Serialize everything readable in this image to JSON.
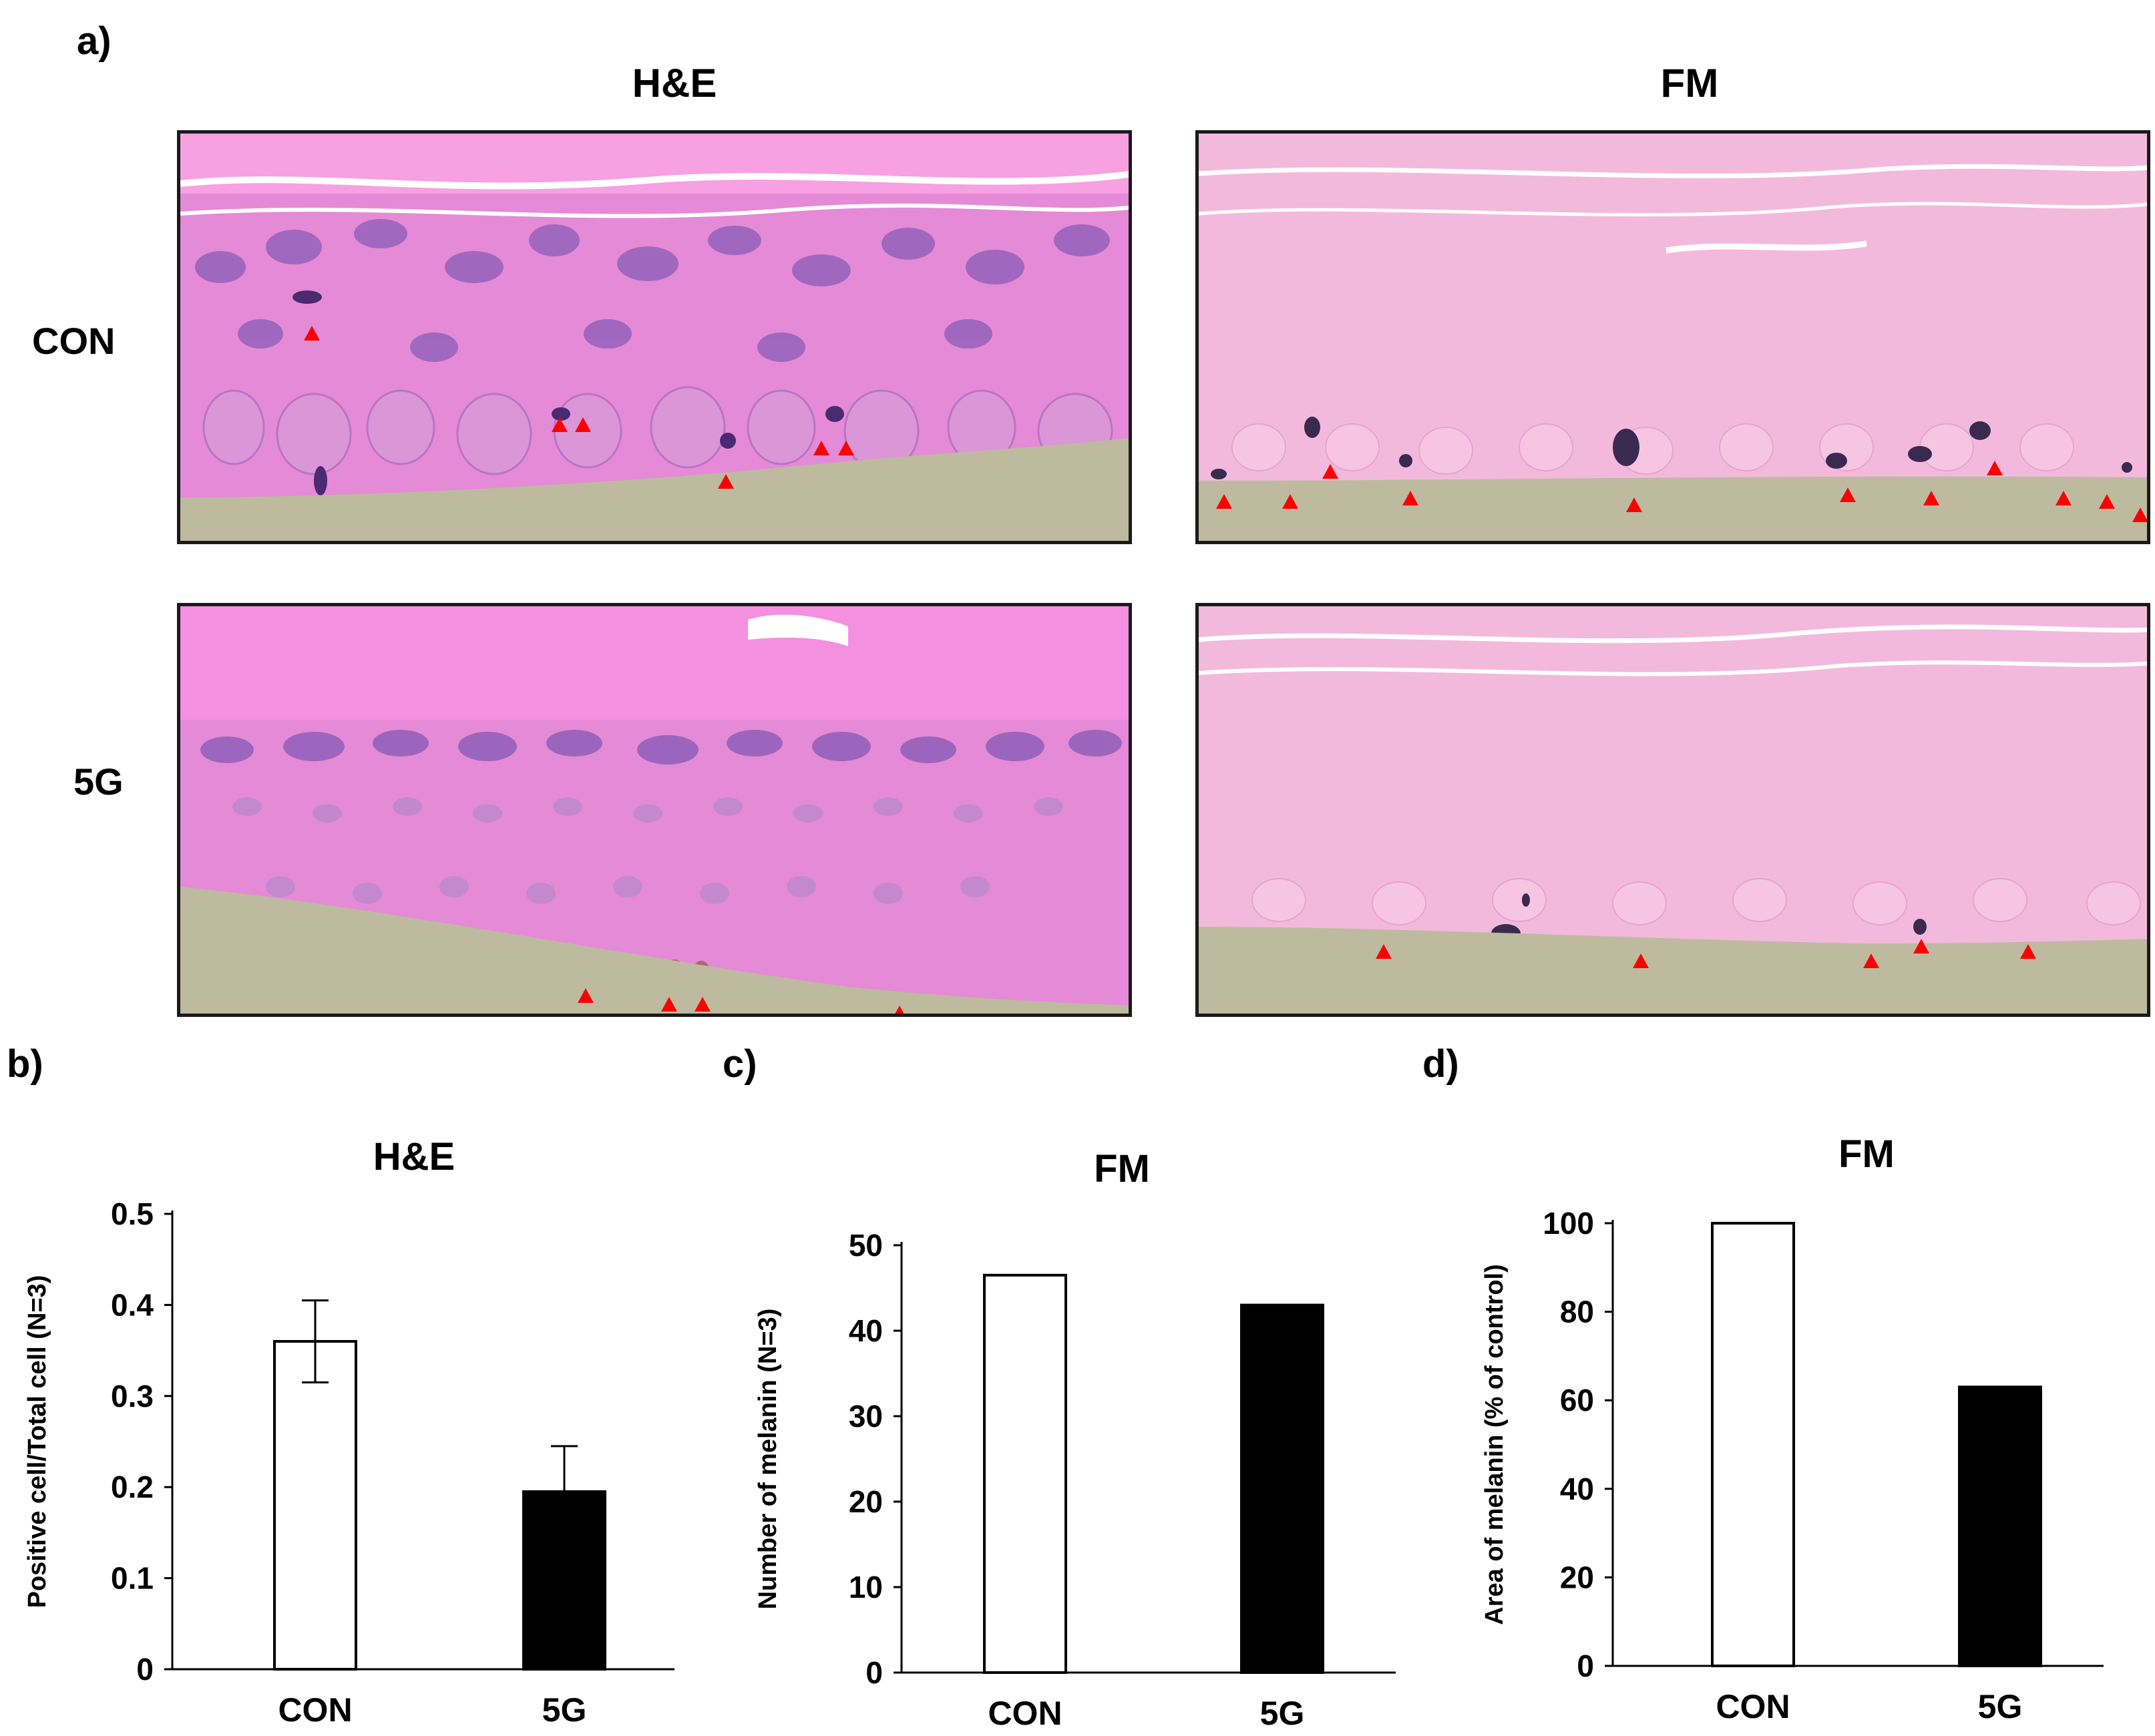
{
  "figure": {
    "panel_labels": {
      "a": "a)",
      "b": "b)",
      "c": "c)",
      "d": "d)"
    },
    "histology": {
      "column_titles": [
        "H&E",
        "FM"
      ],
      "row_labels": [
        "CON",
        "5G"
      ],
      "colors": {
        "tissue_he": "#e58ad6",
        "tissue_fm": "#f3b9dc",
        "nuclei": "#7b4fa8",
        "substrate": "#bdbaa0",
        "arrow": "#ff0000"
      }
    }
  },
  "chart_data": [
    {
      "type": "bar",
      "title": "H&E",
      "ylabel": "Positive cell/Total cell (N=3)",
      "xlabel": "",
      "categories": [
        "CON",
        "5G"
      ],
      "values": [
        0.36,
        0.195
      ],
      "errors": [
        0.045,
        0.05
      ],
      "bar_fills": [
        "#ffffff",
        "#000000"
      ],
      "ylim": [
        0,
        0.5
      ],
      "yticks": [
        0,
        0.1,
        0.2,
        0.3,
        0.4,
        0.5
      ],
      "ytick_labels": [
        "0",
        "0.1",
        "0.2",
        "0.3",
        "0.4",
        "0.5"
      ]
    },
    {
      "type": "bar",
      "title": "FM",
      "ylabel": "Number of melanin (N=3)",
      "xlabel": "",
      "categories": [
        "CON",
        "5G"
      ],
      "values": [
        46.5,
        43
      ],
      "errors": [
        0,
        0
      ],
      "bar_fills": [
        "#ffffff",
        "#000000"
      ],
      "ylim": [
        0,
        50
      ],
      "yticks": [
        0,
        10,
        20,
        30,
        40,
        50
      ],
      "ytick_labels": [
        "0",
        "10",
        "20",
        "30",
        "40",
        "50"
      ]
    },
    {
      "type": "bar",
      "title": "FM",
      "ylabel": "Area of melanin (% of control)",
      "xlabel": "",
      "categories": [
        "CON",
        "5G"
      ],
      "values": [
        100,
        63
      ],
      "errors": [
        0,
        0
      ],
      "bar_fills": [
        "#ffffff",
        "#000000"
      ],
      "ylim": [
        0,
        100
      ],
      "yticks": [
        0,
        20,
        40,
        60,
        80,
        100
      ],
      "ytick_labels": [
        "0",
        "20",
        "40",
        "60",
        "80",
        "100"
      ]
    }
  ]
}
